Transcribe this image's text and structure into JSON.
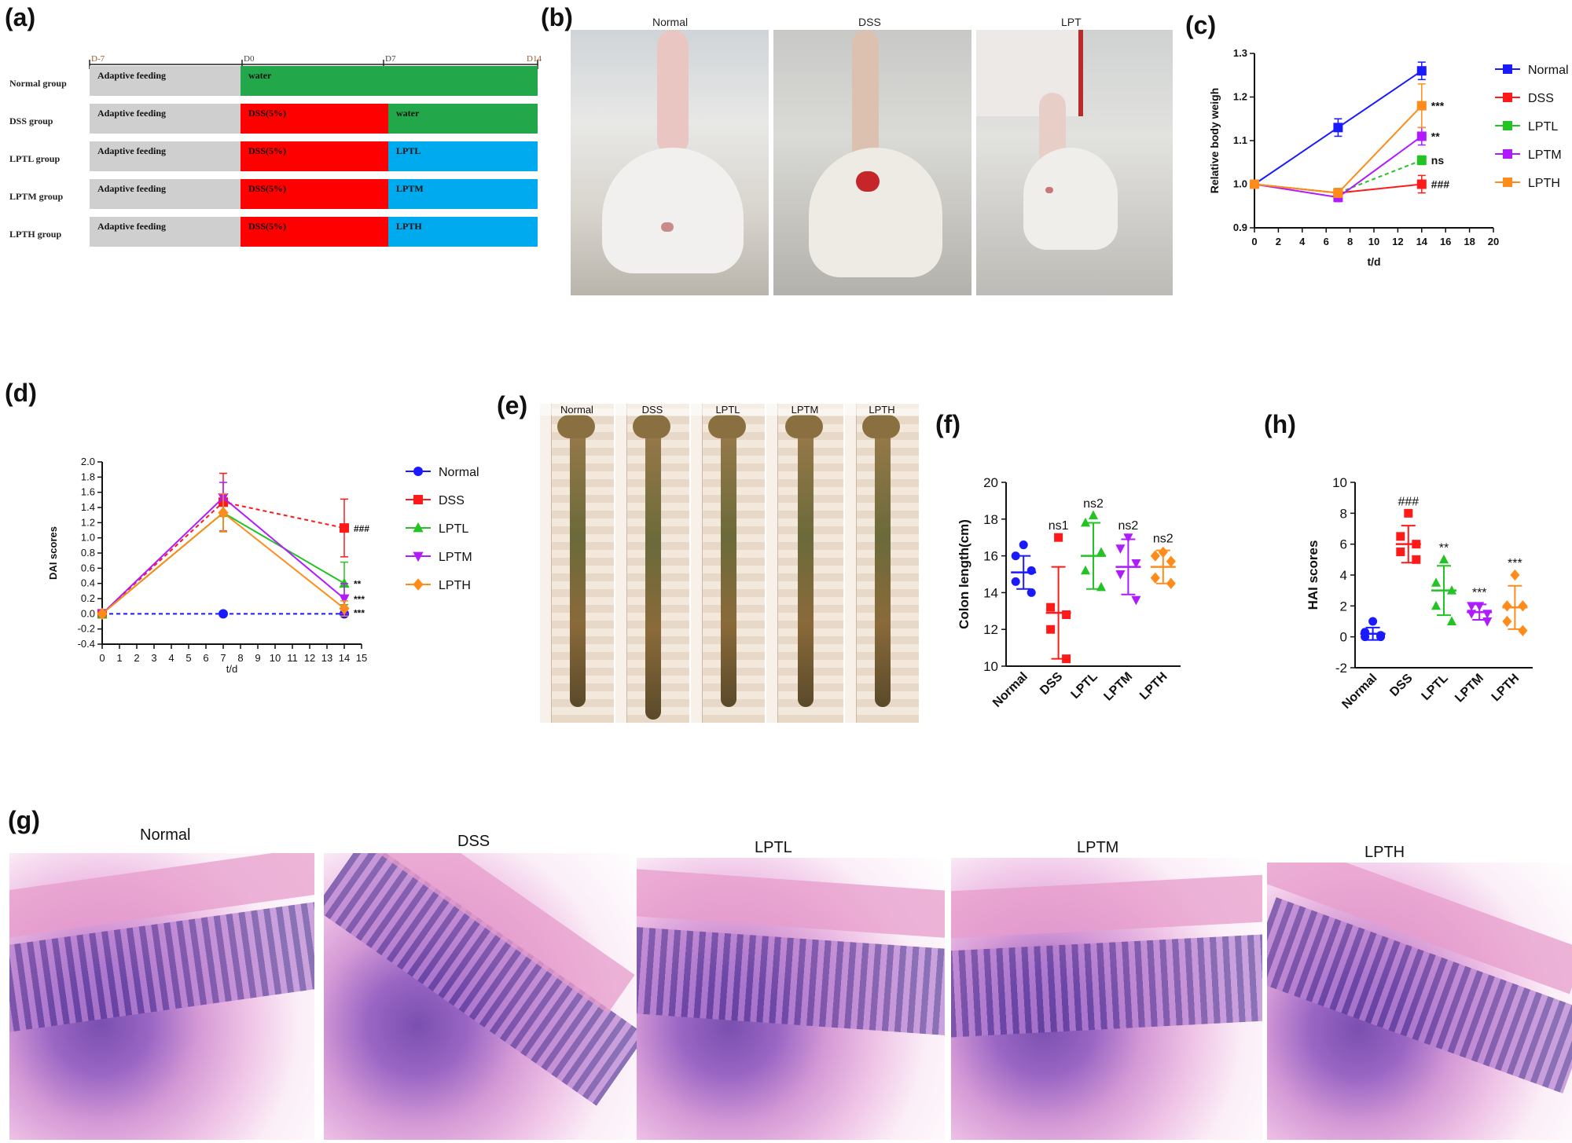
{
  "panel_letters": {
    "a": "(a)",
    "b": "(b)",
    "c": "(c)",
    "d": "(d)",
    "e": "(e)",
    "f": "(f)",
    "g": "(g)",
    "h": "(h)"
  },
  "timeline": {
    "days": [
      "D-7",
      "D0",
      "D7",
      "D14"
    ],
    "groups": [
      {
        "name": "Normal group",
        "segments": [
          {
            "label": "Adaptive feeding",
            "color": "#cfcfcf"
          },
          {
            "label": "water",
            "color": "#22a84a"
          }
        ]
      },
      {
        "name": "DSS group",
        "segments": [
          {
            "label": "Adaptive feeding",
            "color": "#cfcfcf"
          },
          {
            "label": "DSS(5%)",
            "color": "#ff0000"
          },
          {
            "label": "water",
            "color": "#22a84a"
          }
        ]
      },
      {
        "name": "LPTL group",
        "segments": [
          {
            "label": "Adaptive feeding",
            "color": "#cfcfcf"
          },
          {
            "label": "DSS(5%)",
            "color": "#ff0000"
          },
          {
            "label": "LPTL",
            "color": "#00aaee"
          }
        ]
      },
      {
        "name": "LPTM group",
        "segments": [
          {
            "label": "Adaptive feeding",
            "color": "#cfcfcf"
          },
          {
            "label": "DSS(5%)",
            "color": "#ff0000"
          },
          {
            "label": "LPTM",
            "color": "#00aaee"
          }
        ]
      },
      {
        "name": "LPTH group",
        "segments": [
          {
            "label": "Adaptive feeding",
            "color": "#cfcfcf"
          },
          {
            "label": "DSS(5%)",
            "color": "#ff0000"
          },
          {
            "label": "LPTH",
            "color": "#00aaee"
          }
        ]
      }
    ]
  },
  "photos_b": {
    "labels": [
      "Normal",
      "DSS",
      "LPT"
    ]
  },
  "photos_e": {
    "labels": [
      "Normal",
      "DSS",
      "LPTL",
      "LPTM",
      "LPTH"
    ]
  },
  "photos_g": {
    "labels": [
      "Normal",
      "DSS",
      "LPTL",
      "LPTM",
      "LPTH"
    ]
  },
  "colors": {
    "Normal": "#1a1aff",
    "DSS": "#ff1a1a",
    "LPTL": "#22c322",
    "LPTM": "#b01aff",
    "LPTH": "#ff8c1a"
  },
  "chart_data": [
    {
      "id": "c",
      "type": "line",
      "xlabel": "t/d",
      "ylabel": "Relative body weigh",
      "xlim": [
        0,
        20
      ],
      "ylim": [
        0.9,
        1.3
      ],
      "xticks": [
        "0",
        "2",
        "4",
        "6",
        "8",
        "10",
        "12",
        "14",
        "16",
        "18",
        "20"
      ],
      "yticks": [
        "0.9",
        "1.0",
        "1.1",
        "1.2",
        "1.3"
      ],
      "series": [
        {
          "name": "Normal",
          "x": [
            0,
            7,
            14
          ],
          "y": [
            1.0,
            1.13,
            1.26
          ],
          "err": [
            0,
            0.02,
            0.02
          ],
          "marker": "square",
          "dash": false
        },
        {
          "name": "DSS",
          "x": [
            0,
            7,
            14
          ],
          "y": [
            1.0,
            0.98,
            1.0
          ],
          "err": [
            0,
            0.01,
            0.02
          ],
          "marker": "square",
          "dash": false
        },
        {
          "name": "LPTL",
          "x": [
            0,
            7,
            14
          ],
          "y": [
            1.0,
            0.98,
            1.055
          ],
          "err": [
            0,
            0.01,
            0.01
          ],
          "marker": "square",
          "dash": true
        },
        {
          "name": "LPTM",
          "x": [
            0,
            7,
            14
          ],
          "y": [
            1.0,
            0.97,
            1.11
          ],
          "err": [
            0,
            0.01,
            0.02
          ],
          "marker": "square",
          "dash": false
        },
        {
          "name": "LPTH",
          "x": [
            0,
            7,
            14
          ],
          "y": [
            1.0,
            0.98,
            1.18
          ],
          "err": [
            0,
            0.01,
            0.05
          ],
          "marker": "square",
          "dash": false
        }
      ],
      "annotations": [
        {
          "text": "***",
          "x": 14,
          "y": 1.18
        },
        {
          "text": "**",
          "x": 14,
          "y": 1.11
        },
        {
          "text": "ns",
          "x": 14,
          "y": 1.055
        },
        {
          "text": "###",
          "x": 14,
          "y": 1.0
        }
      ],
      "legend": "right"
    },
    {
      "id": "d",
      "type": "line",
      "xlabel": "t/d",
      "ylabel": "DAI scores",
      "xlim": [
        0,
        15
      ],
      "ylim": [
        -0.4,
        2.0
      ],
      "xticks": [
        "0",
        "1",
        "2",
        "3",
        "4",
        "5",
        "6",
        "7",
        "8",
        "9",
        "10",
        "11",
        "12",
        "13",
        "14",
        "15"
      ],
      "yticks": [
        "-0.4",
        "-0.2",
        "0.0",
        "0.2",
        "0.4",
        "0.6",
        "0.8",
        "1.0",
        "1.2",
        "1.4",
        "1.6",
        "1.8",
        "2.0"
      ],
      "series": [
        {
          "name": "Normal",
          "x": [
            0,
            7,
            14
          ],
          "y": [
            0,
            0,
            0
          ],
          "err": [
            0,
            0,
            0
          ],
          "marker": "circle",
          "dash": true
        },
        {
          "name": "DSS",
          "x": [
            0,
            7,
            14
          ],
          "y": [
            0,
            1.47,
            1.13
          ],
          "err": [
            0,
            0.38,
            0.38
          ],
          "marker": "square",
          "dash": true
        },
        {
          "name": "LPTL",
          "x": [
            0,
            7,
            14
          ],
          "y": [
            0,
            1.33,
            0.4
          ],
          "err": [
            0,
            0.25,
            0.28
          ],
          "marker": "triangle-up",
          "dash": false
        },
        {
          "name": "LPTM",
          "x": [
            0,
            7,
            14
          ],
          "y": [
            0,
            1.53,
            0.2
          ],
          "err": [
            0,
            0.2,
            0.2
          ],
          "marker": "triangle-down",
          "dash": false
        },
        {
          "name": "LPTH",
          "x": [
            0,
            7,
            14
          ],
          "y": [
            0,
            1.33,
            0.07
          ],
          "err": [
            0,
            0.25,
            0.1
          ],
          "marker": "diamond",
          "dash": false
        }
      ],
      "annotations": [
        {
          "text": "###",
          "x": 14,
          "y": 1.13
        },
        {
          "text": "**",
          "x": 14,
          "y": 0.4
        },
        {
          "text": "***",
          "x": 14,
          "y": 0.2
        },
        {
          "text": "***",
          "x": 14,
          "y": 0.02
        }
      ],
      "legend": "right"
    },
    {
      "id": "f",
      "type": "scatter",
      "ylabel": "Colon length(cm)",
      "ylim": [
        10,
        20
      ],
      "yticks": [
        "10",
        "12",
        "14",
        "16",
        "18",
        "20"
      ],
      "categories": [
        "Normal",
        "DSS",
        "LPTL",
        "LPTM",
        "LPTH"
      ],
      "groups": [
        {
          "name": "Normal",
          "points": [
            16.6,
            16.0,
            15.2,
            14.6,
            14.0
          ],
          "mean": 15.1,
          "sd": 0.9,
          "marker": "circle",
          "label": ""
        },
        {
          "name": "DSS",
          "points": [
            17.0,
            13.2,
            12.8,
            12.0,
            10.4
          ],
          "mean": 12.9,
          "sd": 2.5,
          "marker": "square",
          "label": "ns1"
        },
        {
          "name": "LPTL",
          "points": [
            18.2,
            17.8,
            16.2,
            15.2,
            14.3
          ],
          "mean": 16.0,
          "sd": 1.8,
          "marker": "triangle-up",
          "label": "ns2"
        },
        {
          "name": "LPTM",
          "points": [
            17.0,
            16.4,
            15.6,
            15.0,
            13.6
          ],
          "mean": 15.4,
          "sd": 1.5,
          "marker": "triangle-down",
          "label": "ns2"
        },
        {
          "name": "LPTH",
          "points": [
            16.2,
            16.0,
            15.7,
            14.8,
            14.5
          ],
          "mean": 15.4,
          "sd": 0.9,
          "marker": "diamond",
          "label": "ns2"
        }
      ]
    },
    {
      "id": "h",
      "type": "scatter",
      "ylabel": "HAI scores",
      "ylim": [
        -2,
        10
      ],
      "yticks": [
        "-2",
        "0",
        "2",
        "4",
        "6",
        "8",
        "10"
      ],
      "categories": [
        "Normal",
        "DSS",
        "LPTL",
        "LPTM",
        "LPTH"
      ],
      "groups": [
        {
          "name": "Normal",
          "points": [
            1.0,
            0.3,
            0.1,
            0.0,
            0.0
          ],
          "mean": 0.2,
          "sd": 0.4,
          "marker": "circle",
          "label": ""
        },
        {
          "name": "DSS",
          "points": [
            8.0,
            6.5,
            6.0,
            5.5,
            5.0
          ],
          "mean": 6.0,
          "sd": 1.2,
          "marker": "square",
          "label": "###"
        },
        {
          "name": "LPTL",
          "points": [
            5.0,
            3.5,
            3.0,
            2.0,
            1.0
          ],
          "mean": 3.0,
          "sd": 1.6,
          "marker": "triangle-up",
          "label": "**"
        },
        {
          "name": "LPTM",
          "points": [
            2.0,
            2.0,
            1.5,
            1.5,
            1.0
          ],
          "mean": 1.6,
          "sd": 0.5,
          "marker": "triangle-down",
          "label": "***"
        },
        {
          "name": "LPTH",
          "points": [
            4.0,
            2.0,
            2.0,
            1.0,
            0.4
          ],
          "mean": 1.9,
          "sd": 1.4,
          "marker": "diamond",
          "label": "***"
        }
      ]
    }
  ]
}
